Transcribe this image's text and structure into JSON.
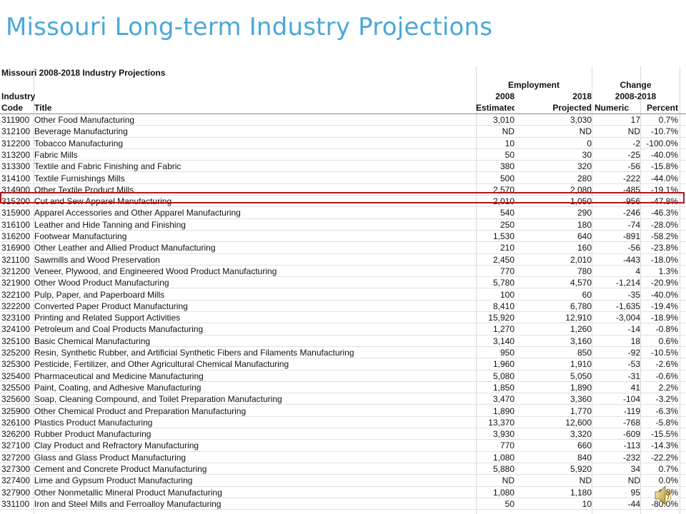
{
  "slide": {
    "title": "Missouri Long-term Industry Projections"
  },
  "sheet": {
    "title": "Missouri 2008-2018 Industry Projections",
    "groups": {
      "employment": "Employment",
      "change": "Change"
    },
    "header2": {
      "left": "Industry",
      "est": "2008",
      "proj": "2018",
      "change": "2008-2018"
    },
    "header3": {
      "code": "Code",
      "title": "Title",
      "est": "Estimated",
      "proj": "Projected",
      "num": "Numeric",
      "pct": "Percent"
    },
    "rows": [
      {
        "code": "311900",
        "title": "Other Food Manufacturing",
        "est": "3,010",
        "proj": "3,030",
        "num": "17",
        "pct": "0.7%"
      },
      {
        "code": "312100",
        "title": "Beverage Manufacturing",
        "est": "ND",
        "proj": "ND",
        "num": "ND",
        "pct": "-10.7%"
      },
      {
        "code": "312200",
        "title": "Tobacco Manufacturing",
        "est": "10",
        "proj": "0",
        "num": "-2",
        "pct": "-100.0%"
      },
      {
        "code": "313200",
        "title": "Fabric Mills",
        "est": "50",
        "proj": "30",
        "num": "-25",
        "pct": "-40.0%"
      },
      {
        "code": "313300",
        "title": "Textile and Fabric Finishing and Fabric",
        "est": "380",
        "proj": "320",
        "num": "-56",
        "pct": "-15.8%"
      },
      {
        "code": "314100",
        "title": "Textile Furnishings Mills",
        "est": "500",
        "proj": "280",
        "num": "-222",
        "pct": "-44.0%"
      },
      {
        "code": "314900",
        "title": "Other Textile Product Mills",
        "est": "2,570",
        "proj": "2,080",
        "num": "-485",
        "pct": "-19.1%"
      },
      {
        "code": "315200",
        "title": "Cut and Sew Apparel Manufacturing",
        "est": "2,010",
        "proj": "1,050",
        "num": "-956",
        "pct": "-47.8%"
      },
      {
        "code": "315900",
        "title": "Apparel Accessories and Other Apparel Manufacturing",
        "est": "540",
        "proj": "290",
        "num": "-246",
        "pct": "-46.3%"
      },
      {
        "code": "316100",
        "title": "Leather and Hide Tanning and Finishing",
        "est": "250",
        "proj": "180",
        "num": "-74",
        "pct": "-28.0%"
      },
      {
        "code": "316200",
        "title": "Footwear Manufacturing",
        "est": "1,530",
        "proj": "640",
        "num": "-891",
        "pct": "-58.2%"
      },
      {
        "code": "316900",
        "title": "Other Leather and Allied Product Manufacturing",
        "est": "210",
        "proj": "160",
        "num": "-56",
        "pct": "-23.8%"
      },
      {
        "code": "321100",
        "title": "Sawmills and Wood Preservation",
        "est": "2,450",
        "proj": "2,010",
        "num": "-443",
        "pct": "-18.0%"
      },
      {
        "code": "321200",
        "title": "Veneer, Plywood, and Engineered Wood Product Manufacturing",
        "est": "770",
        "proj": "780",
        "num": "4",
        "pct": "1.3%"
      },
      {
        "code": "321900",
        "title": "Other Wood Product Manufacturing",
        "est": "5,780",
        "proj": "4,570",
        "num": "-1,214",
        "pct": "-20.9%"
      },
      {
        "code": "322100",
        "title": "Pulp, Paper, and Paperboard Mills",
        "est": "100",
        "proj": "60",
        "num": "-35",
        "pct": "-40.0%"
      },
      {
        "code": "322200",
        "title": "Converted Paper Product Manufacturing",
        "est": "8,410",
        "proj": "6,780",
        "num": "-1,635",
        "pct": "-19.4%"
      },
      {
        "code": "323100",
        "title": "Printing and Related Support Activities",
        "est": "15,920",
        "proj": "12,910",
        "num": "-3,004",
        "pct": "-18.9%"
      },
      {
        "code": "324100",
        "title": "Petroleum and Coal Products Manufacturing",
        "est": "1,270",
        "proj": "1,260",
        "num": "-14",
        "pct": "-0.8%"
      },
      {
        "code": "325100",
        "title": "Basic Chemical Manufacturing",
        "est": "3,140",
        "proj": "3,160",
        "num": "18",
        "pct": "0.6%"
      },
      {
        "code": "325200",
        "title": "Resin, Synthetic Rubber, and Artificial Synthetic Fibers and Filaments Manufacturing",
        "est": "950",
        "proj": "850",
        "num": "-92",
        "pct": "-10.5%"
      },
      {
        "code": "325300",
        "title": "Pesticide, Fertilizer, and Other Agricultural Chemical Manufacturing",
        "est": "1,960",
        "proj": "1,910",
        "num": "-53",
        "pct": "-2.6%"
      },
      {
        "code": "325400",
        "title": "Pharmaceutical and Medicine Manufacturing",
        "est": "5,080",
        "proj": "5,050",
        "num": "-31",
        "pct": "-0.6%"
      },
      {
        "code": "325500",
        "title": "Paint, Coating, and Adhesive Manufacturing",
        "est": "1,850",
        "proj": "1,890",
        "num": "41",
        "pct": "2.2%"
      },
      {
        "code": "325600",
        "title": "Soap, Cleaning Compound, and Toilet Preparation Manufacturing",
        "est": "3,470",
        "proj": "3,360",
        "num": "-104",
        "pct": "-3.2%"
      },
      {
        "code": "325900",
        "title": "Other Chemical Product and Preparation Manufacturing",
        "est": "1,890",
        "proj": "1,770",
        "num": "-119",
        "pct": "-6.3%"
      },
      {
        "code": "326100",
        "title": "Plastics Product Manufacturing",
        "est": "13,370",
        "proj": "12,600",
        "num": "-768",
        "pct": "-5.8%"
      },
      {
        "code": "326200",
        "title": "Rubber Product Manufacturing",
        "est": "3,930",
        "proj": "3,320",
        "num": "-609",
        "pct": "-15.5%"
      },
      {
        "code": "327100",
        "title": "Clay Product and Refractory Manufacturing",
        "est": "770",
        "proj": "660",
        "num": "-113",
        "pct": "-14.3%"
      },
      {
        "code": "327200",
        "title": "Glass and Glass Product Manufacturing",
        "est": "1,080",
        "proj": "840",
        "num": "-232",
        "pct": "-22.2%"
      },
      {
        "code": "327300",
        "title": "Cement and Concrete Product Manufacturing",
        "est": "5,880",
        "proj": "5,920",
        "num": "34",
        "pct": "0.7%"
      },
      {
        "code": "327400",
        "title": "Lime and Gypsum Product Manufacturing",
        "est": "ND",
        "proj": "ND",
        "num": "ND",
        "pct": "0.0%"
      },
      {
        "code": "327900",
        "title": "Other Nonmetallic Mineral Product Manufacturing",
        "est": "1,080",
        "proj": "1,180",
        "num": "95",
        "pct": "8.8%"
      },
      {
        "code": "331100",
        "title": "Iron and Steel Mills and Ferroalloy Manufacturing",
        "est": "50",
        "proj": "10",
        "num": "-44",
        "pct": "-80.0%"
      }
    ]
  },
  "icons": {
    "speaker": "speaker-icon"
  },
  "colors": {
    "title": "#4aa8d8",
    "highlight": "#b01818"
  }
}
